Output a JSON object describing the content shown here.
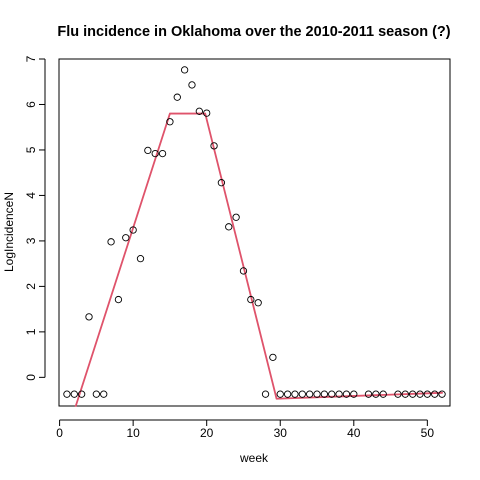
{
  "chart_data": {
    "type": "scatter",
    "title": "Flu incidence in Oklahoma over the 2010-2011 season (?)",
    "xlabel": "week",
    "ylabel": "LogIncidenceN",
    "xlim": [
      -0.08,
      53.08
    ],
    "ylim": [
      -0.63,
      7.0
    ],
    "x_ticks": [
      0,
      10,
      20,
      30,
      40,
      50
    ],
    "y_ticks": [
      0,
      1,
      2,
      3,
      4,
      5,
      6,
      7
    ],
    "grid": false,
    "point_color": "#000000",
    "line_color": "#DF536B",
    "points": [
      {
        "x": 1,
        "y": -0.37
      },
      {
        "x": 2,
        "y": -0.37
      },
      {
        "x": 3,
        "y": -0.37
      },
      {
        "x": 4,
        "y": 1.33
      },
      {
        "x": 5,
        "y": -0.37
      },
      {
        "x": 6,
        "y": -0.37
      },
      {
        "x": 7,
        "y": 2.98
      },
      {
        "x": 8,
        "y": 1.71
      },
      {
        "x": 9,
        "y": 3.07
      },
      {
        "x": 10,
        "y": 3.24
      },
      {
        "x": 11,
        "y": 2.61
      },
      {
        "x": 12,
        "y": 4.99
      },
      {
        "x": 13,
        "y": 4.92
      },
      {
        "x": 14,
        "y": 4.92
      },
      {
        "x": 15,
        "y": 5.62
      },
      {
        "x": 16,
        "y": 6.16
      },
      {
        "x": 17,
        "y": 6.76
      },
      {
        "x": 18,
        "y": 6.43
      },
      {
        "x": 19,
        "y": 5.85
      },
      {
        "x": 20,
        "y": 5.81
      },
      {
        "x": 21,
        "y": 5.09
      },
      {
        "x": 22,
        "y": 4.28
      },
      {
        "x": 23,
        "y": 3.31
      },
      {
        "x": 24,
        "y": 3.52
      },
      {
        "x": 25,
        "y": 2.34
      },
      {
        "x": 26,
        "y": 1.71
      },
      {
        "x": 27,
        "y": 1.64
      },
      {
        "x": 28,
        "y": -0.37
      },
      {
        "x": 29,
        "y": 0.44
      },
      {
        "x": 30,
        "y": -0.37
      },
      {
        "x": 31,
        "y": -0.37
      },
      {
        "x": 32,
        "y": -0.37
      },
      {
        "x": 33,
        "y": -0.37
      },
      {
        "x": 34,
        "y": -0.37
      },
      {
        "x": 35,
        "y": -0.37
      },
      {
        "x": 36,
        "y": -0.37
      },
      {
        "x": 37,
        "y": -0.37
      },
      {
        "x": 38,
        "y": -0.37
      },
      {
        "x": 39,
        "y": -0.37
      },
      {
        "x": 40,
        "y": -0.37
      },
      {
        "x": 42,
        "y": -0.37
      },
      {
        "x": 43,
        "y": -0.37
      },
      {
        "x": 44,
        "y": -0.37
      },
      {
        "x": 46,
        "y": -0.37
      },
      {
        "x": 47,
        "y": -0.37
      },
      {
        "x": 48,
        "y": -0.37
      },
      {
        "x": 49,
        "y": -0.37
      },
      {
        "x": 50,
        "y": -0.37
      },
      {
        "x": 51,
        "y": -0.37
      },
      {
        "x": 52,
        "y": -0.37
      }
    ],
    "fit_line": [
      {
        "x": 2.2,
        "y": -0.63
      },
      {
        "x": 15.0,
        "y": 5.8
      },
      {
        "x": 19.8,
        "y": 5.8
      },
      {
        "x": 29.5,
        "y": -0.47
      },
      {
        "x": 52.0,
        "y": -0.34
      }
    ]
  }
}
